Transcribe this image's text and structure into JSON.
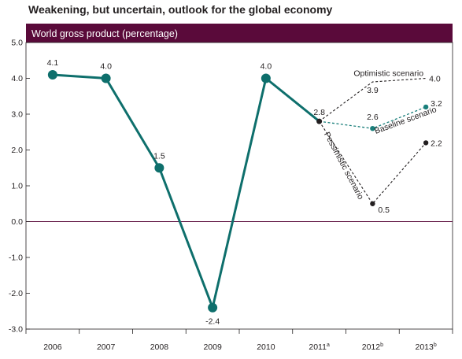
{
  "title": "Weakening, but uncertain, outlook for the global economy",
  "panel_label": "World gross product (percentage)",
  "colors": {
    "band": "#5a0a3a",
    "main_line": "#0e6f6c",
    "baseline": "#1a7f7b",
    "dark": "#231f20"
  },
  "chart_data": {
    "type": "line",
    "title": "Weakening, but uncertain, outlook for the global economy",
    "ylabel": "World gross product (percentage)",
    "xlabel": "",
    "categories": [
      "2006",
      "2007",
      "2008",
      "2009",
      "2010",
      "2011",
      "2012",
      "2013"
    ],
    "category_superscripts": [
      "",
      "",
      "",
      "",
      "",
      "a",
      "b",
      "b"
    ],
    "ylim": [
      -3.0,
      5.0
    ],
    "yticks": [
      "5.0",
      "4.0",
      "3.0",
      "2.0",
      "1.0",
      "0.0",
      "-1.0",
      "-2.0",
      "-3.0"
    ],
    "series": [
      {
        "key": "actual",
        "name": "",
        "x": [
          "2006",
          "2007",
          "2008",
          "2009",
          "2010",
          "2011"
        ],
        "values": [
          4.1,
          4.0,
          1.5,
          -2.4,
          4.0,
          2.8
        ],
        "labels": [
          "4.1",
          "4.0",
          "1.5",
          "-2.4",
          "4.0",
          "2.8"
        ]
      },
      {
        "key": "optimistic",
        "name": "Optimistic scenario",
        "x": [
          "2011",
          "2012",
          "2013"
        ],
        "values": [
          2.8,
          3.9,
          4.0
        ],
        "labels": [
          "",
          "3.9",
          "4.0"
        ]
      },
      {
        "key": "baseline",
        "name": "Baseline scenario",
        "x": [
          "2011",
          "2012",
          "2013"
        ],
        "values": [
          2.8,
          2.6,
          3.2
        ],
        "labels": [
          "",
          "2.6",
          "3.2"
        ]
      },
      {
        "key": "pessimistic",
        "name": "Pessimistic scenario",
        "x": [
          "2011",
          "2012",
          "2013"
        ],
        "values": [
          2.8,
          0.5,
          2.2
        ],
        "labels": [
          "",
          "0.5",
          "2.2"
        ]
      }
    ],
    "grid": false,
    "legend": "none"
  }
}
